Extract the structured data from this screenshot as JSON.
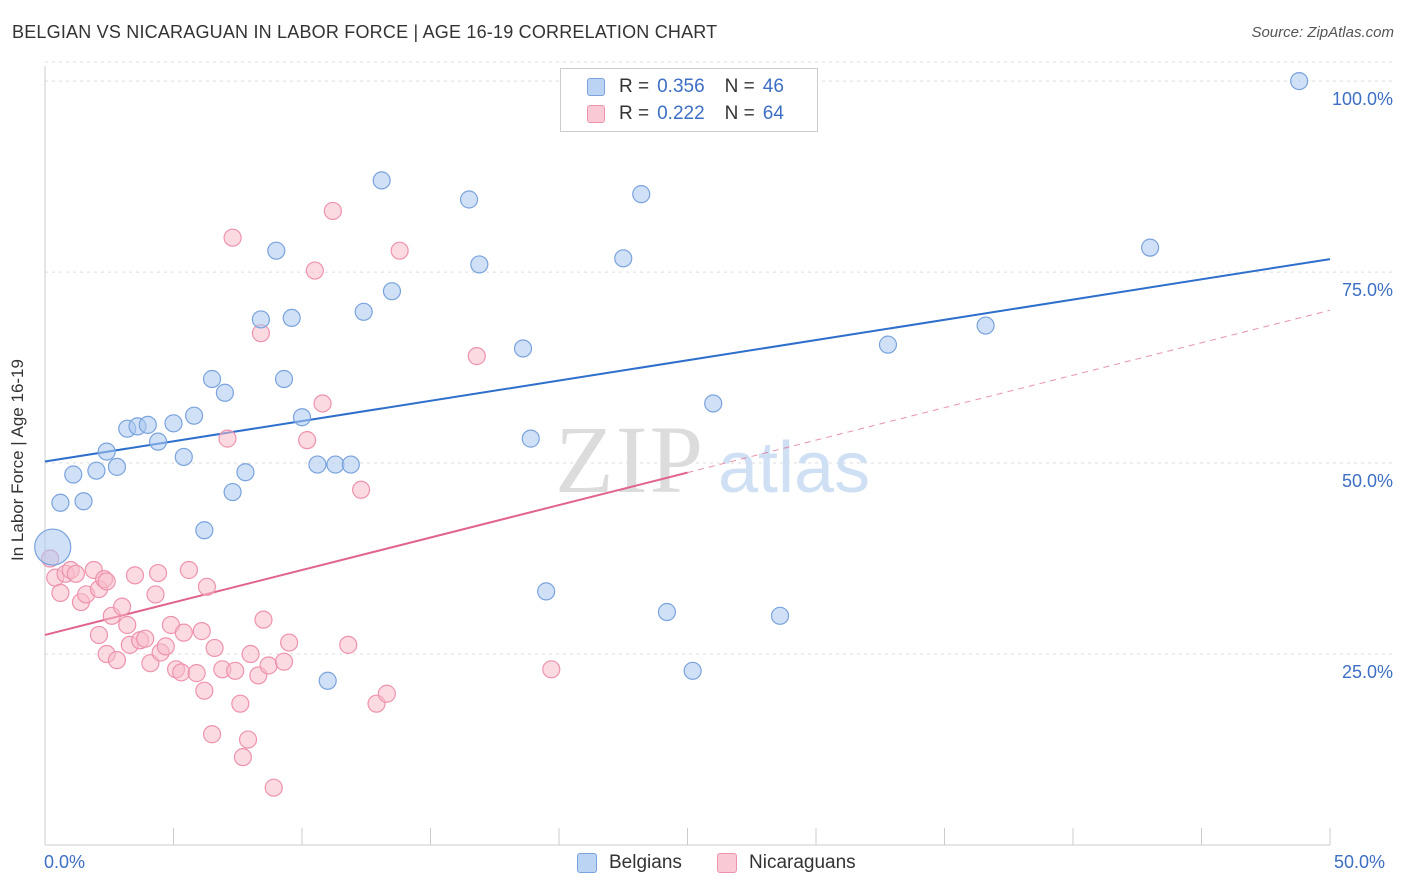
{
  "title": "BELGIAN VS NICARAGUAN IN LABOR FORCE | AGE 16-19 CORRELATION CHART",
  "source": "Source: ZipAtlas.com",
  "watermark": {
    "zip": "ZIP",
    "atlas": "atlas"
  },
  "legend_top": [
    {
      "r_label": "R =",
      "r_value": "0.356",
      "n_label": "N =",
      "n_value": "46"
    },
    {
      "r_label": "R =",
      "r_value": "0.222",
      "n_label": "N =",
      "n_value": "64"
    }
  ],
  "legend_bottom": [
    "Belgians",
    "Nicaraguans"
  ],
  "colors": {
    "belgian_fill": "#aac8f0",
    "belgian_stroke": "#7aa3dd",
    "belgian_line": "#2e6fcc",
    "nicaraguan_fill": "#f7bccb",
    "nicaraguan_stroke": "#ee93ad",
    "nicaraguan_line": "#e0648c",
    "axis_label": "#3d6fc4",
    "grid": "#dddddd"
  },
  "chart_data": {
    "type": "scatter",
    "title": "BELGIAN VS NICARAGUAN IN LABOR FORCE | AGE 16-19 CORRELATION CHART",
    "xlabel": "",
    "ylabel": "In Labor Force | Age 16-19",
    "xlim": [
      0,
      50
    ],
    "ylim": [
      0,
      102.5
    ],
    "x_tick_labels": [
      "0.0%",
      "50.0%"
    ],
    "y_ticks": [
      25,
      50,
      75,
      100
    ],
    "y_tick_labels": [
      "25.0%",
      "50.0%",
      "75.0%",
      "100.0%"
    ],
    "grid": true,
    "series": [
      {
        "name": "Belgians",
        "r": 0.356,
        "n": 46,
        "trend": {
          "x0": 0,
          "y0": 50.2,
          "x1": 50,
          "y1": 76.7,
          "dashed_from": null
        },
        "points": [
          [
            0.3,
            39.0
          ],
          [
            0.6,
            44.8
          ],
          [
            1.1,
            48.5
          ],
          [
            1.5,
            45.0
          ],
          [
            2.0,
            49.0
          ],
          [
            2.4,
            51.5
          ],
          [
            2.8,
            49.5
          ],
          [
            3.2,
            54.5
          ],
          [
            3.6,
            54.8
          ],
          [
            4.0,
            55.0
          ],
          [
            4.4,
            52.8
          ],
          [
            5.0,
            55.2
          ],
          [
            5.4,
            50.8
          ],
          [
            5.8,
            56.2
          ],
          [
            6.2,
            41.2
          ],
          [
            6.5,
            61.0
          ],
          [
            7.0,
            59.2
          ],
          [
            7.3,
            46.2
          ],
          [
            7.8,
            48.8
          ],
          [
            8.4,
            68.8
          ],
          [
            9.0,
            77.8
          ],
          [
            9.3,
            61.0
          ],
          [
            9.6,
            69.0
          ],
          [
            10.0,
            56.0
          ],
          [
            10.6,
            49.8
          ],
          [
            11.0,
            21.5
          ],
          [
            11.3,
            49.8
          ],
          [
            11.9,
            49.8
          ],
          [
            12.4,
            69.8
          ],
          [
            13.1,
            87.0
          ],
          [
            13.5,
            72.5
          ],
          [
            16.5,
            84.5
          ],
          [
            16.9,
            76.0
          ],
          [
            18.6,
            65.0
          ],
          [
            18.9,
            53.2
          ],
          [
            19.5,
            33.2
          ],
          [
            22.5,
            76.8
          ],
          [
            23.2,
            85.2
          ],
          [
            24.2,
            30.5
          ],
          [
            25.2,
            22.8
          ],
          [
            26.0,
            57.8
          ],
          [
            28.6,
            30.0
          ],
          [
            32.8,
            65.5
          ],
          [
            36.6,
            68.0
          ],
          [
            43.0,
            78.2
          ],
          [
            48.8,
            100.0
          ]
        ]
      },
      {
        "name": "Nicaraguans",
        "r": 0.222,
        "n": 64,
        "trend": {
          "x0": 0,
          "y0": 27.5,
          "x1": 50,
          "y1": 70.0,
          "dashed_from": 25
        },
        "points": [
          [
            0.2,
            37.5
          ],
          [
            0.4,
            35.0
          ],
          [
            0.6,
            33.0
          ],
          [
            0.8,
            35.5
          ],
          [
            1.0,
            36.0
          ],
          [
            1.2,
            35.5
          ],
          [
            1.4,
            31.8
          ],
          [
            1.6,
            32.8
          ],
          [
            1.9,
            36.0
          ],
          [
            2.1,
            33.5
          ],
          [
            2.3,
            34.8
          ],
          [
            2.4,
            34.5
          ],
          [
            2.1,
            27.5
          ],
          [
            2.4,
            25.0
          ],
          [
            2.6,
            30.0
          ],
          [
            2.8,
            24.2
          ],
          [
            3.0,
            31.2
          ],
          [
            3.2,
            28.8
          ],
          [
            3.3,
            26.2
          ],
          [
            3.5,
            35.3
          ],
          [
            3.7,
            26.8
          ],
          [
            3.9,
            27.0
          ],
          [
            4.1,
            23.8
          ],
          [
            4.3,
            32.8
          ],
          [
            4.4,
            35.6
          ],
          [
            4.5,
            25.2
          ],
          [
            4.7,
            26.0
          ],
          [
            4.9,
            28.8
          ],
          [
            5.1,
            23.0
          ],
          [
            5.3,
            22.6
          ],
          [
            5.4,
            27.8
          ],
          [
            5.6,
            36.0
          ],
          [
            5.9,
            22.5
          ],
          [
            6.1,
            28.0
          ],
          [
            6.2,
            20.2
          ],
          [
            6.3,
            33.8
          ],
          [
            6.5,
            14.5
          ],
          [
            6.6,
            25.8
          ],
          [
            6.9,
            23.0
          ],
          [
            7.1,
            53.2
          ],
          [
            7.3,
            79.5
          ],
          [
            7.4,
            22.8
          ],
          [
            7.6,
            18.5
          ],
          [
            7.7,
            11.5
          ],
          [
            7.9,
            13.8
          ],
          [
            8.0,
            25.0
          ],
          [
            8.3,
            22.2
          ],
          [
            8.4,
            67.0
          ],
          [
            8.5,
            29.5
          ],
          [
            8.7,
            23.5
          ],
          [
            8.9,
            7.5
          ],
          [
            9.3,
            24.0
          ],
          [
            9.5,
            26.5
          ],
          [
            10.5,
            75.2
          ],
          [
            10.8,
            57.8
          ],
          [
            11.2,
            83.0
          ],
          [
            11.8,
            26.2
          ],
          [
            12.3,
            46.5
          ],
          [
            12.9,
            18.5
          ],
          [
            13.3,
            19.8
          ],
          [
            13.8,
            77.8
          ],
          [
            16.8,
            64.0
          ],
          [
            19.7,
            23.0
          ],
          [
            10.2,
            53.0
          ]
        ]
      }
    ]
  }
}
